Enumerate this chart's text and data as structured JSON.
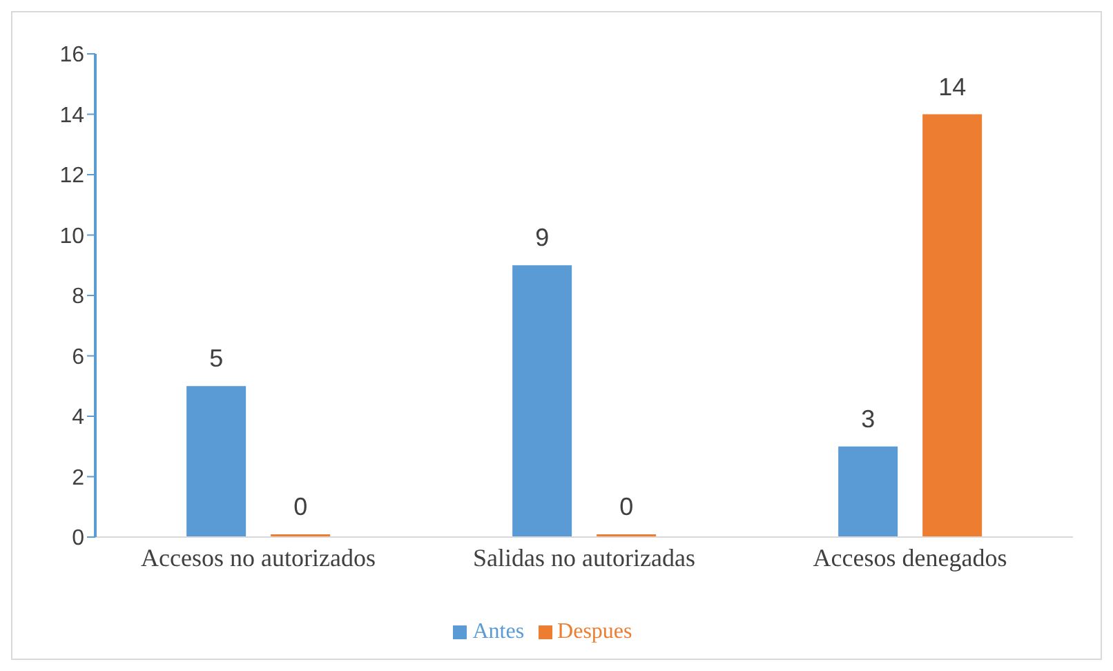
{
  "chart_data": {
    "type": "bar",
    "categories": [
      "Accesos no autorizados",
      "Salidas no autorizadas",
      "Accesos denegados"
    ],
    "series": [
      {
        "name": "Antes",
        "color": "#5b9bd5",
        "values": [
          5,
          9,
          3
        ]
      },
      {
        "name": "Despues",
        "color": "#ed7d31",
        "values": [
          0,
          0,
          14
        ]
      }
    ],
    "ylim": [
      0,
      16
    ],
    "yticks": [
      0,
      2,
      4,
      6,
      8,
      10,
      12,
      14,
      16
    ],
    "grid": false,
    "legend": "bottom",
    "data_labels": true
  }
}
